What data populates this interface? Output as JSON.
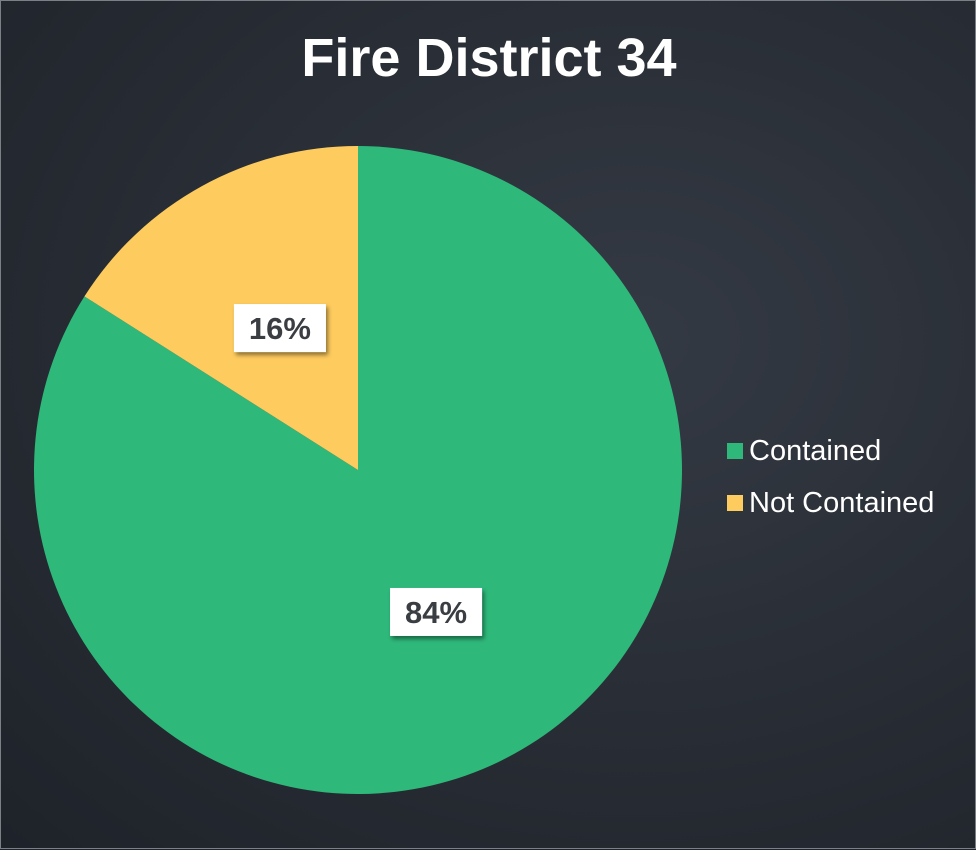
{
  "chart_data": {
    "type": "pie",
    "title": "Fire District 34",
    "slices": [
      {
        "label": "Contained",
        "value": 84,
        "display": "84%",
        "color": "#2eb87a"
      },
      {
        "label": "Not Contained",
        "value": 16,
        "display": "16%",
        "color": "#fecb5e"
      }
    ],
    "start_angle_deg": 0,
    "direction": "clockwise",
    "legend_position": "right",
    "background": "#2a2f37"
  }
}
